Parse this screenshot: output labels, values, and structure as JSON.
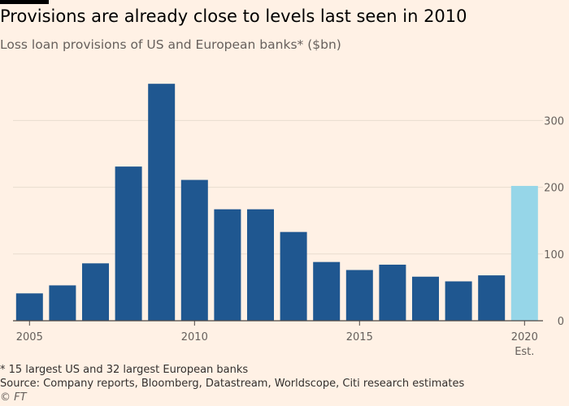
{
  "header": {
    "title": "Provisions are already close to levels last seen in 2010",
    "subtitle": "Loss loan provisions of US and European banks* ($bn)"
  },
  "footer": {
    "note": "* 15 largest US and 32 largest European banks",
    "source": "Source: Company reports, Bloomberg, Datastream, Worldscope, Citi research estimates",
    "credit": "© FT"
  },
  "colors": {
    "actual": "#1f5790",
    "estimate": "#96d6e8",
    "gridline": "#e8dccf",
    "baseline": "#4d4845",
    "background": "#fff1e5"
  },
  "chart_data": {
    "type": "bar",
    "title": "Provisions are already close to levels last seen in 2010",
    "subtitle": "Loss loan provisions of US and European banks* ($bn)",
    "xlabel": "",
    "ylabel": "",
    "categories": [
      2005,
      2006,
      2007,
      2008,
      2009,
      2010,
      2011,
      2012,
      2013,
      2014,
      2015,
      2016,
      2017,
      2018,
      2019,
      2020
    ],
    "values": [
      41,
      53,
      86,
      231,
      355,
      211,
      167,
      167,
      133,
      88,
      76,
      84,
      66,
      59,
      68,
      202
    ],
    "estimated": [
      false,
      false,
      false,
      false,
      false,
      false,
      false,
      false,
      false,
      false,
      false,
      false,
      false,
      false,
      false,
      true
    ],
    "ylim": [
      0,
      360
    ],
    "yticks": [
      0,
      100,
      200,
      300
    ],
    "xticks": [
      2005,
      2010,
      2015,
      2020
    ],
    "xtick_sublabel": {
      "2020": "Est."
    },
    "grid": true,
    "yaxis_side": "right"
  }
}
